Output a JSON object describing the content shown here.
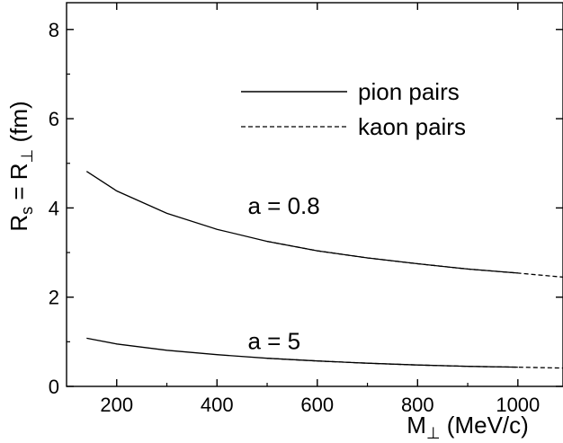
{
  "chart_data": {
    "type": "line",
    "title": "",
    "xlabel": "M",
    "xlabel_sub": "⊥",
    "xlabel_unit": " (MeV/c)",
    "ylabel_main": "R",
    "ylabel_sub1": "s",
    "ylabel_mid": " = R",
    "ylabel_sub2": "⊥",
    "ylabel_unit": " (fm)",
    "xlim": [
      100,
      1090
    ],
    "ylim": [
      0,
      8.6
    ],
    "xticks": [
      200,
      400,
      600,
      800,
      1000
    ],
    "yticks": [
      0,
      2,
      4,
      6,
      8
    ],
    "legend_placement": "top-right",
    "legend": [
      {
        "label": "pion pairs",
        "style": "solid"
      },
      {
        "label": "kaon pairs",
        "style": "dashed"
      }
    ],
    "annotations": [
      {
        "text": "a = 0.8",
        "x": 560,
        "y": 4.05
      },
      {
        "text": "a = 5",
        "x": 560,
        "y": 1.02
      }
    ],
    "series": [
      {
        "group": "a = 0.8",
        "particle": "pion",
        "style": "solid",
        "x": [
          140,
          200,
          300,
          400,
          500,
          600,
          700,
          800,
          900,
          1000
        ],
        "y": [
          4.82,
          4.38,
          3.88,
          3.52,
          3.25,
          3.04,
          2.88,
          2.75,
          2.63,
          2.54
        ]
      },
      {
        "group": "a = 0.8",
        "particle": "kaon",
        "style": "dashed",
        "x": [
          500,
          600,
          700,
          800,
          900,
          1000,
          1090
        ],
        "y": [
          3.25,
          3.04,
          2.88,
          2.75,
          2.63,
          2.54,
          2.45
        ]
      },
      {
        "group": "a = 5",
        "particle": "pion",
        "style": "solid",
        "x": [
          140,
          200,
          300,
          400,
          500,
          600,
          700,
          800,
          900,
          1000
        ],
        "y": [
          1.08,
          0.95,
          0.81,
          0.71,
          0.63,
          0.57,
          0.52,
          0.48,
          0.45,
          0.43
        ]
      },
      {
        "group": "a = 5",
        "particle": "kaon",
        "style": "dashed",
        "x": [
          500,
          600,
          700,
          800,
          900,
          1000,
          1090
        ],
        "y": [
          0.63,
          0.57,
          0.52,
          0.48,
          0.45,
          0.43,
          0.41
        ]
      }
    ]
  }
}
